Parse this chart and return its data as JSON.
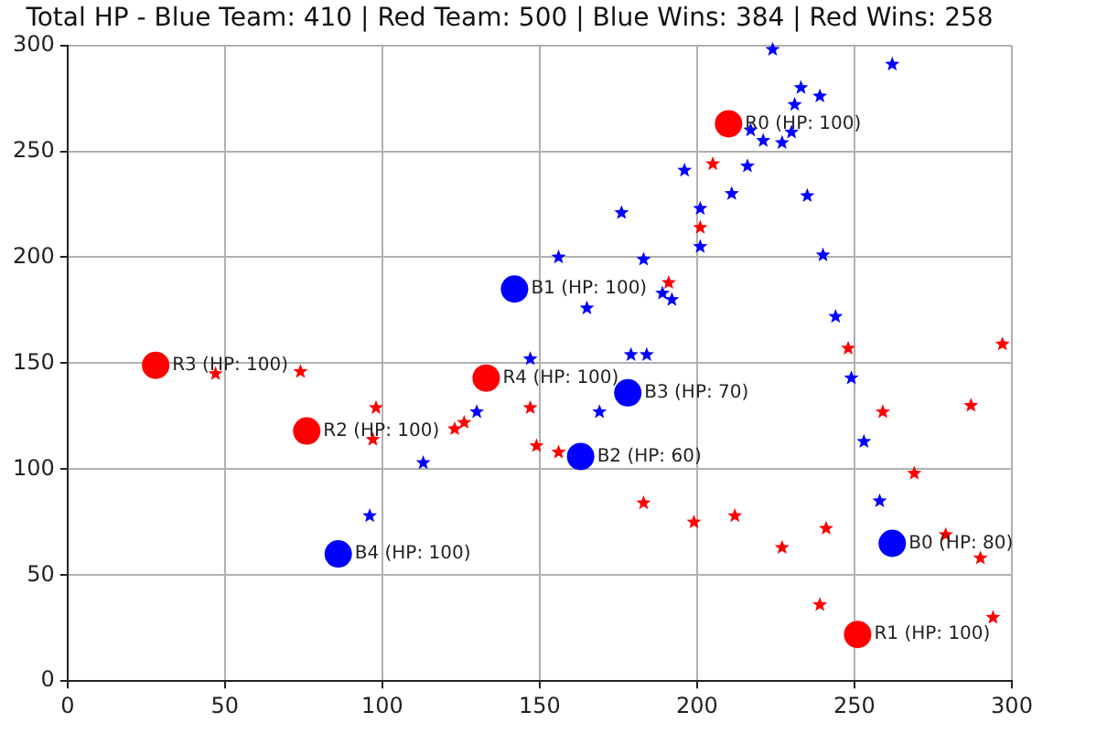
{
  "chart_data": {
    "type": "scatter",
    "title": "Total HP - Blue Team: 410 | Red Team: 500 | Blue Wins: 384 | Red Wins: 258",
    "xlim": [
      0,
      300
    ],
    "xticks": [
      0,
      50,
      100,
      150,
      200,
      250,
      300
    ],
    "ylim": [
      0,
      300
    ],
    "yticks": [
      0,
      50,
      100,
      150,
      200,
      250,
      300
    ],
    "grid": true,
    "legend": false,
    "series": [
      {
        "color": "#0000ff",
        "marker": "star",
        "x": [
          224,
          262,
          233,
          239,
          231,
          217,
          221,
          227,
          230,
          196,
          216,
          211,
          235,
          176,
          201,
          201,
          156,
          183,
          240,
          189,
          192,
          165,
          244,
          179,
          184,
          147,
          249,
          169,
          253,
          258,
          130,
          113,
          96
        ],
        "values": [
          298,
          291,
          280,
          276,
          272,
          260,
          255,
          254,
          259,
          241,
          243,
          230,
          229,
          221,
          223,
          205,
          200,
          199,
          201,
          183,
          180,
          176,
          172,
          154,
          154,
          152,
          143,
          127,
          113,
          85,
          127,
          103,
          78
        ]
      },
      {
        "color": "#ff0000",
        "marker": "star",
        "x": [
          205,
          201,
          191,
          248,
          297,
          147,
          259,
          287,
          149,
          156,
          269,
          183,
          199,
          212,
          241,
          227,
          279,
          290,
          239,
          294,
          47,
          74,
          98,
          97,
          123,
          126
        ],
        "values": [
          244,
          214,
          188,
          157,
          159,
          129,
          127,
          130,
          111,
          108,
          98,
          84,
          75,
          78,
          72,
          63,
          69,
          58,
          36,
          30,
          145,
          146,
          129,
          114,
          119,
          122
        ]
      },
      {
        "color": "#ff0000",
        "marker": "circle",
        "x": [
          210,
          251,
          76,
          28,
          133
        ],
        "values": [
          263,
          22,
          118,
          149,
          143
        ]
      },
      {
        "color": "#0000ff",
        "marker": "circle",
        "x": [
          262,
          142,
          163,
          178,
          86
        ],
        "values": [
          65,
          185,
          106,
          136,
          60
        ]
      }
    ],
    "annotations": [
      {
        "text": "R0 (HP: 100)",
        "x": 210,
        "y": 263
      },
      {
        "text": "R1 (HP: 100)",
        "x": 251,
        "y": 22
      },
      {
        "text": "R2 (HP: 100)",
        "x": 76,
        "y": 118
      },
      {
        "text": "R3 (HP: 100)",
        "x": 28,
        "y": 149
      },
      {
        "text": "R4 (HP: 100)",
        "x": 133,
        "y": 143
      },
      {
        "text": "B0 (HP: 80)",
        "x": 262,
        "y": 65
      },
      {
        "text": "B1 (HP: 100)",
        "x": 142,
        "y": 185
      },
      {
        "text": "B2 (HP: 60)",
        "x": 163,
        "y": 106
      },
      {
        "text": "B3 (HP: 70)",
        "x": 178,
        "y": 136
      },
      {
        "text": "B4 (HP: 100)",
        "x": 86,
        "y": 60
      }
    ]
  }
}
